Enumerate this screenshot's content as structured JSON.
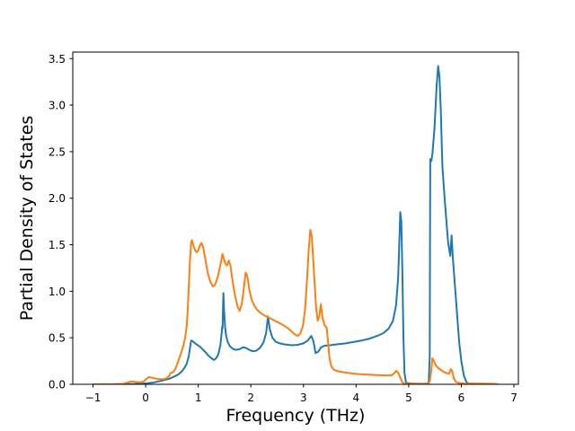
{
  "figure": {
    "background": "#ffffff",
    "frame_color": "#000000"
  },
  "chart_data": {
    "type": "line",
    "title": "",
    "xlabel": "Frequency (THz)",
    "ylabel": "Partial Density of States",
    "xlim": [
      -1.385,
      7.085
    ],
    "ylim": [
      0,
      3.57
    ],
    "xticks": [
      -1,
      0,
      1,
      2,
      3,
      4,
      5,
      6,
      7
    ],
    "xtick_labels": [
      "−1",
      "0",
      "1",
      "2",
      "3",
      "4",
      "5",
      "6",
      "7"
    ],
    "yticks": [
      0.0,
      0.5,
      1.0,
      1.5,
      2.0,
      2.5,
      3.0,
      3.5
    ],
    "ytick_labels": [
      "0.0",
      "0.5",
      "1.0",
      "1.5",
      "2.0",
      "2.5",
      "3.0",
      "3.5"
    ],
    "grid": false,
    "legend": null,
    "series": [
      {
        "name": "blue",
        "color": "#1f77b4",
        "points": [
          [
            -1.0,
            0
          ],
          [
            -0.7,
            0
          ],
          [
            -0.4,
            0.002
          ],
          [
            -0.2,
            0.004
          ],
          [
            -0.05,
            0.008
          ],
          [
            0.05,
            0.012
          ],
          [
            0.15,
            0.02
          ],
          [
            0.25,
            0.032
          ],
          [
            0.35,
            0.045
          ],
          [
            0.45,
            0.06
          ],
          [
            0.55,
            0.085
          ],
          [
            0.62,
            0.105
          ],
          [
            0.68,
            0.135
          ],
          [
            0.73,
            0.17
          ],
          [
            0.78,
            0.22
          ],
          [
            0.82,
            0.3
          ],
          [
            0.845,
            0.4
          ],
          [
            0.865,
            0.47
          ],
          [
            0.89,
            0.465
          ],
          [
            0.93,
            0.445
          ],
          [
            0.98,
            0.425
          ],
          [
            1.03,
            0.405
          ],
          [
            1.08,
            0.378
          ],
          [
            1.13,
            0.35
          ],
          [
            1.19,
            0.31
          ],
          [
            1.25,
            0.28
          ],
          [
            1.3,
            0.262
          ],
          [
            1.34,
            0.28
          ],
          [
            1.38,
            0.32
          ],
          [
            1.42,
            0.42
          ],
          [
            1.445,
            0.55
          ],
          [
            1.455,
            0.62
          ],
          [
            1.462,
            0.6
          ],
          [
            1.472,
            0.85
          ],
          [
            1.478,
            0.98
          ],
          [
            1.49,
            0.8
          ],
          [
            1.51,
            0.62
          ],
          [
            1.53,
            0.52
          ],
          [
            1.56,
            0.455
          ],
          [
            1.6,
            0.41
          ],
          [
            1.66,
            0.38
          ],
          [
            1.72,
            0.37
          ],
          [
            1.79,
            0.378
          ],
          [
            1.85,
            0.398
          ],
          [
            1.9,
            0.392
          ],
          [
            1.97,
            0.37
          ],
          [
            2.03,
            0.356
          ],
          [
            2.1,
            0.36
          ],
          [
            2.17,
            0.39
          ],
          [
            2.24,
            0.45
          ],
          [
            2.29,
            0.55
          ],
          [
            2.325,
            0.73
          ],
          [
            2.36,
            0.59
          ],
          [
            2.41,
            0.5
          ],
          [
            2.47,
            0.458
          ],
          [
            2.55,
            0.44
          ],
          [
            2.65,
            0.428
          ],
          [
            2.78,
            0.42
          ],
          [
            2.9,
            0.425
          ],
          [
            3.0,
            0.44
          ],
          [
            3.08,
            0.47
          ],
          [
            3.15,
            0.52
          ],
          [
            3.19,
            0.46
          ],
          [
            3.23,
            0.335
          ],
          [
            3.28,
            0.35
          ],
          [
            3.33,
            0.395
          ],
          [
            3.4,
            0.415
          ],
          [
            3.5,
            0.42
          ],
          [
            3.65,
            0.43
          ],
          [
            3.8,
            0.44
          ],
          [
            3.95,
            0.455
          ],
          [
            4.1,
            0.47
          ],
          [
            4.25,
            0.49
          ],
          [
            4.4,
            0.52
          ],
          [
            4.52,
            0.55
          ],
          [
            4.62,
            0.6
          ],
          [
            4.7,
            0.68
          ],
          [
            4.76,
            0.85
          ],
          [
            4.8,
            1.15
          ],
          [
            4.82,
            1.5
          ],
          [
            4.84,
            1.85
          ],
          [
            4.86,
            1.75
          ],
          [
            4.88,
            1.2
          ],
          [
            4.9,
            0.5
          ],
          [
            4.92,
            0.12
          ],
          [
            4.95,
            0.015
          ],
          [
            5.05,
            0.008
          ],
          [
            5.2,
            0.006
          ],
          [
            5.33,
            0.006
          ],
          [
            5.38,
            0.015
          ],
          [
            5.4,
            0.3
          ],
          [
            5.405,
            1.5
          ],
          [
            5.41,
            2.42
          ],
          [
            5.43,
            2.4
          ],
          [
            5.45,
            2.47
          ],
          [
            5.49,
            2.75
          ],
          [
            5.53,
            3.2
          ],
          [
            5.56,
            3.42
          ],
          [
            5.585,
            3.3
          ],
          [
            5.61,
            2.95
          ],
          [
            5.64,
            2.35
          ],
          [
            5.67,
            2.1
          ],
          [
            5.71,
            1.8
          ],
          [
            5.75,
            1.52
          ],
          [
            5.79,
            1.38
          ],
          [
            5.815,
            1.6
          ],
          [
            5.84,
            1.35
          ],
          [
            5.88,
            1.05
          ],
          [
            5.92,
            0.75
          ],
          [
            5.96,
            0.45
          ],
          [
            6.0,
            0.25
          ],
          [
            6.05,
            0.09
          ],
          [
            6.1,
            0.02
          ],
          [
            6.15,
            0.006
          ],
          [
            6.25,
            0.002
          ],
          [
            6.45,
            0.001
          ],
          [
            6.7,
            0
          ]
        ]
      },
      {
        "name": "orange",
        "color": "#ff7f0e",
        "points": [
          [
            -1.0,
            0
          ],
          [
            -0.7,
            0
          ],
          [
            -0.5,
            0.002
          ],
          [
            -0.42,
            0.006
          ],
          [
            -0.35,
            0.018
          ],
          [
            -0.3,
            0.028
          ],
          [
            -0.25,
            0.03
          ],
          [
            -0.18,
            0.024
          ],
          [
            -0.1,
            0.02
          ],
          [
            -0.04,
            0.03
          ],
          [
            0.02,
            0.06
          ],
          [
            0.06,
            0.077
          ],
          [
            0.11,
            0.072
          ],
          [
            0.18,
            0.062
          ],
          [
            0.26,
            0.056
          ],
          [
            0.33,
            0.055
          ],
          [
            0.4,
            0.065
          ],
          [
            0.45,
            0.09
          ],
          [
            0.47,
            0.12
          ],
          [
            0.52,
            0.13
          ],
          [
            0.57,
            0.17
          ],
          [
            0.62,
            0.25
          ],
          [
            0.67,
            0.33
          ],
          [
            0.71,
            0.4
          ],
          [
            0.75,
            0.5
          ],
          [
            0.78,
            0.62
          ],
          [
            0.8,
            0.8
          ],
          [
            0.82,
            1.05
          ],
          [
            0.845,
            1.35
          ],
          [
            0.865,
            1.52
          ],
          [
            0.88,
            1.55
          ],
          [
            0.905,
            1.5
          ],
          [
            0.94,
            1.44
          ],
          [
            0.97,
            1.42
          ],
          [
            1.0,
            1.44
          ],
          [
            1.03,
            1.49
          ],
          [
            1.06,
            1.52
          ],
          [
            1.09,
            1.48
          ],
          [
            1.13,
            1.36
          ],
          [
            1.18,
            1.2
          ],
          [
            1.23,
            1.1
          ],
          [
            1.28,
            1.05
          ],
          [
            1.32,
            1.07
          ],
          [
            1.37,
            1.15
          ],
          [
            1.42,
            1.28
          ],
          [
            1.46,
            1.4
          ],
          [
            1.49,
            1.34
          ],
          [
            1.52,
            1.29
          ],
          [
            1.55,
            1.28
          ],
          [
            1.58,
            1.33
          ],
          [
            1.61,
            1.28
          ],
          [
            1.65,
            1.12
          ],
          [
            1.7,
            0.95
          ],
          [
            1.75,
            0.83
          ],
          [
            1.79,
            0.79
          ],
          [
            1.83,
            0.87
          ],
          [
            1.87,
            1.05
          ],
          [
            1.9,
            1.2
          ],
          [
            1.93,
            1.17
          ],
          [
            1.97,
            1.02
          ],
          [
            2.01,
            0.92
          ],
          [
            2.06,
            0.85
          ],
          [
            2.12,
            0.8
          ],
          [
            2.19,
            0.765
          ],
          [
            2.26,
            0.74
          ],
          [
            2.32,
            0.72
          ],
          [
            2.4,
            0.7
          ],
          [
            2.5,
            0.67
          ],
          [
            2.6,
            0.64
          ],
          [
            2.7,
            0.605
          ],
          [
            2.78,
            0.565
          ],
          [
            2.84,
            0.535
          ],
          [
            2.89,
            0.52
          ],
          [
            2.94,
            0.545
          ],
          [
            2.99,
            0.63
          ],
          [
            3.03,
            0.8
          ],
          [
            3.07,
            1.15
          ],
          [
            3.1,
            1.45
          ],
          [
            3.13,
            1.66
          ],
          [
            3.16,
            1.58
          ],
          [
            3.2,
            1.2
          ],
          [
            3.24,
            0.82
          ],
          [
            3.27,
            0.685
          ],
          [
            3.3,
            0.73
          ],
          [
            3.33,
            0.86
          ],
          [
            3.36,
            0.72
          ],
          [
            3.4,
            0.635
          ],
          [
            3.44,
            0.61
          ],
          [
            3.46,
            0.5
          ],
          [
            3.49,
            0.3
          ],
          [
            3.53,
            0.19
          ],
          [
            3.58,
            0.155
          ],
          [
            3.66,
            0.14
          ],
          [
            3.78,
            0.128
          ],
          [
            3.95,
            0.115
          ],
          [
            4.15,
            0.106
          ],
          [
            4.35,
            0.1
          ],
          [
            4.55,
            0.095
          ],
          [
            4.67,
            0.095
          ],
          [
            4.73,
            0.12
          ],
          [
            4.76,
            0.145
          ],
          [
            4.8,
            0.125
          ],
          [
            4.84,
            0.07
          ],
          [
            4.88,
            0.02
          ],
          [
            4.92,
            0.006
          ],
          [
            5.05,
            0.004
          ],
          [
            5.2,
            0.004
          ],
          [
            5.35,
            0.006
          ],
          [
            5.4,
            0.03
          ],
          [
            5.43,
            0.15
          ],
          [
            5.45,
            0.28
          ],
          [
            5.48,
            0.25
          ],
          [
            5.52,
            0.2
          ],
          [
            5.58,
            0.165
          ],
          [
            5.65,
            0.14
          ],
          [
            5.72,
            0.12
          ],
          [
            5.77,
            0.115
          ],
          [
            5.8,
            0.165
          ],
          [
            5.825,
            0.145
          ],
          [
            5.86,
            0.06
          ],
          [
            5.9,
            0.025
          ],
          [
            5.95,
            0.015
          ],
          [
            6.05,
            0.01
          ],
          [
            6.2,
            0.008
          ],
          [
            6.4,
            0.007
          ],
          [
            6.55,
            0.006
          ],
          [
            6.68,
            0.003
          ],
          [
            6.7,
            0
          ]
        ]
      }
    ]
  }
}
